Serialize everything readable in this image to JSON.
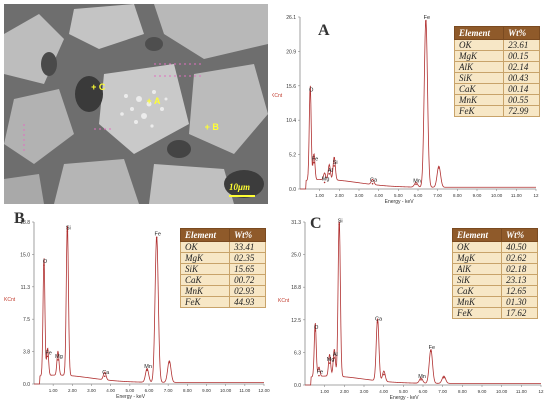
{
  "sem": {
    "markers": [
      {
        "label": "+ C",
        "x": 0.33,
        "y": 0.39
      },
      {
        "label": "+ A",
        "x": 0.54,
        "y": 0.46
      },
      {
        "label": "+ B",
        "x": 0.76,
        "y": 0.59
      }
    ],
    "scale_bar": "10μm",
    "colors": {
      "bg": "#6e6e6e",
      "grain": "#b9b9b9",
      "dark": "#3a3a3a",
      "marker": "#ffff33"
    }
  },
  "spectra": [
    {
      "id": "A",
      "panel_label": "A",
      "table_headers": [
        "Element",
        "Wt%"
      ],
      "table": [
        [
          "OK",
          "23.61"
        ],
        [
          "MgK",
          "00.15"
        ],
        [
          "AlK",
          "02.14"
        ],
        [
          "SiK",
          "00.43"
        ],
        [
          "CaK",
          "00.14"
        ],
        [
          "MnK",
          "00.55"
        ],
        [
          "FeK",
          "72.99"
        ]
      ],
      "kcnt_label": "KCnt",
      "xlabel": "Energy - keV",
      "yticks": [
        "26.1",
        "20.9",
        "15.6",
        "10.4",
        "5.2",
        "0.0"
      ],
      "xticks": [
        "1.00",
        "2.00",
        "3.00",
        "4.00",
        "5.00",
        "6.00",
        "7.00",
        "8.00",
        "9.00",
        "10.00",
        "11.00",
        "12"
      ]
    },
    {
      "id": "B",
      "panel_label": "B",
      "table_headers": [
        "Element",
        "Wt%"
      ],
      "table": [
        [
          "OK",
          "33.41"
        ],
        [
          "MgK",
          "02.35"
        ],
        [
          "SiK",
          "15.65"
        ],
        [
          "CaK",
          "00.72"
        ],
        [
          "MnK",
          "02.93"
        ],
        [
          "FeK",
          "44.93"
        ]
      ],
      "kcnt_label": "KCnt",
      "xlabel": "Energy - keV",
      "yticks": [
        "18.8",
        "15.0",
        "11.3",
        "7.5",
        "3.8",
        "0.0"
      ],
      "xticks": [
        "1.00",
        "2.00",
        "3.00",
        "4.00",
        "5.00",
        "6.00",
        "7.00",
        "8.00",
        "9.00",
        "10.00",
        "11.00",
        "12.00"
      ]
    },
    {
      "id": "C",
      "panel_label": "C",
      "table_headers": [
        "Element",
        "Wt%"
      ],
      "table": [
        [
          "OK",
          "40.50"
        ],
        [
          "MgK",
          "02.62"
        ],
        [
          "AlK",
          "02.18"
        ],
        [
          "SiK",
          "23.13"
        ],
        [
          "CaK",
          "12.65"
        ],
        [
          "MnK",
          "01.30"
        ],
        [
          "FeK",
          "17.62"
        ]
      ],
      "kcnt_label": "KCnt",
      "xlabel": "Energy - keV",
      "yticks": [
        "31.3",
        "25.0",
        "18.8",
        "12.5",
        "6.3",
        "0.0"
      ],
      "xticks": [
        "1.00",
        "2.00",
        "3.00",
        "4.00",
        "5.00",
        "6.00",
        "7.00",
        "8.00",
        "9.00",
        "10.00",
        "11.00",
        "12"
      ]
    }
  ],
  "chart_data": [
    {
      "type": "line",
      "title": "A",
      "xlabel": "Energy - keV",
      "ylabel": "KCnt",
      "xlim": [
        0,
        12
      ],
      "ylim": [
        0,
        26.1
      ],
      "peaks": [
        {
          "label": "O",
          "x": 0.52,
          "y": 14.5
        },
        {
          "label": "Fe",
          "x": 0.71,
          "y": 4.0
        },
        {
          "label": "Mg",
          "x": 1.25,
          "y": 1.0
        },
        {
          "label": "Al",
          "x": 1.49,
          "y": 2.3
        },
        {
          "label": "Si",
          "x": 1.74,
          "y": 3.5
        },
        {
          "label": "Ca",
          "x": 3.69,
          "y": 0.8
        },
        {
          "label": "Mn",
          "x": 5.9,
          "y": 0.7
        },
        {
          "label": "Fe",
          "x": 6.4,
          "y": 25.5
        },
        {
          "label": "",
          "x": 7.06,
          "y": 3.2
        }
      ]
    },
    {
      "type": "line",
      "title": "B",
      "xlabel": "Energy - keV",
      "ylabel": "KCnt",
      "xlim": [
        0,
        12
      ],
      "ylim": [
        0,
        18.8
      ],
      "peaks": [
        {
          "label": "O",
          "x": 0.52,
          "y": 13.8
        },
        {
          "label": "Fe",
          "x": 0.71,
          "y": 3.2
        },
        {
          "label": "Mg",
          "x": 1.25,
          "y": 2.8
        },
        {
          "label": "Si",
          "x": 1.74,
          "y": 17.7
        },
        {
          "label": "Ca",
          "x": 3.69,
          "y": 0.9
        },
        {
          "label": "Mn",
          "x": 5.9,
          "y": 1.6
        },
        {
          "label": "Fe",
          "x": 6.4,
          "y": 17.0
        },
        {
          "label": "",
          "x": 7.06,
          "y": 2.5
        }
      ]
    },
    {
      "type": "line",
      "title": "C",
      "xlabel": "Energy - keV",
      "ylabel": "KCnt",
      "xlim": [
        0,
        12
      ],
      "ylim": [
        0,
        31.3
      ],
      "peaks": [
        {
          "label": "O",
          "x": 0.52,
          "y": 10.4
        },
        {
          "label": "Fe",
          "x": 0.71,
          "y": 1.8
        },
        {
          "label": "Mg",
          "x": 1.25,
          "y": 4.2
        },
        {
          "label": "Al",
          "x": 1.49,
          "y": 5.2
        },
        {
          "label": "Si",
          "x": 1.74,
          "y": 30.8
        },
        {
          "label": "Ca",
          "x": 3.69,
          "y": 12.0
        },
        {
          "label": "",
          "x": 4.01,
          "y": 2.0
        },
        {
          "label": "Mn",
          "x": 5.9,
          "y": 1.0
        },
        {
          "label": "Fe",
          "x": 6.4,
          "y": 6.5
        },
        {
          "label": "",
          "x": 7.06,
          "y": 1.4
        }
      ]
    }
  ]
}
